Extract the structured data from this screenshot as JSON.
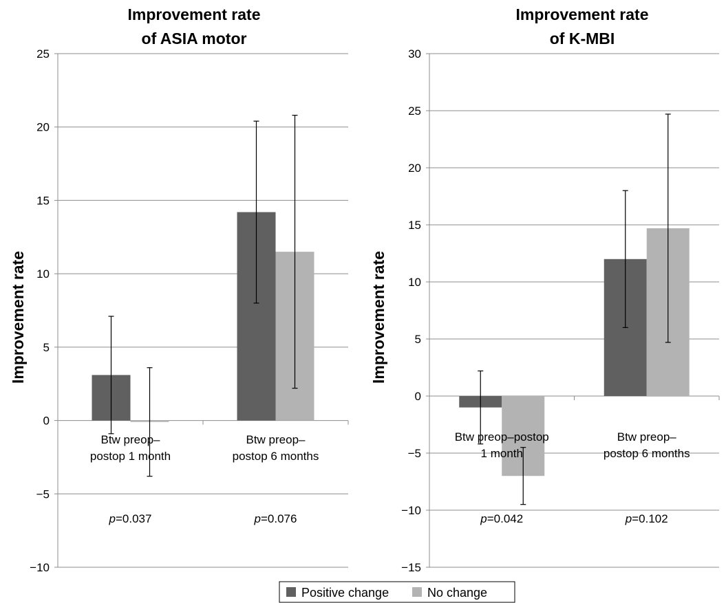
{
  "chart_data": [
    {
      "type": "bar",
      "title": "Improvement rate\nof ASIA motor",
      "ylabel": "Improvement rate",
      "ylim": [
        -10,
        25
      ],
      "yticks": [
        -10,
        -5,
        0,
        5,
        10,
        15,
        20,
        25
      ],
      "ytick_labels": [
        "−10",
        "−5",
        "0",
        "5",
        "10",
        "15",
        "20",
        "25"
      ],
      "categories": [
        "Btw preop–\npostop 1 month",
        "Btw preop–\npostop 6 months"
      ],
      "series": [
        {
          "name": "Positive change",
          "values": [
            3.1,
            14.2
          ],
          "err_low": [
            -0.9,
            8.0
          ],
          "err_high": [
            7.1,
            20.4
          ]
        },
        {
          "name": "No change",
          "values": [
            -0.1,
            11.5
          ],
          "err_low": [
            -3.8,
            2.2
          ],
          "err_high": [
            3.6,
            20.8
          ]
        }
      ],
      "annotations": [
        {
          "prefix": "p",
          "text": "=0.037"
        },
        {
          "prefix": "p",
          "text": "=0.076"
        }
      ],
      "grid": true
    },
    {
      "type": "bar",
      "title": "Improvement rate\nof K-MBI",
      "ylabel": "Improvement rate",
      "ylim": [
        -15,
        30
      ],
      "yticks": [
        -15,
        -10,
        -5,
        0,
        5,
        10,
        15,
        20,
        25,
        30
      ],
      "ytick_labels": [
        "−15",
        "−10",
        "−5",
        "0",
        "5",
        "10",
        "15",
        "20",
        "25",
        "30"
      ],
      "categories": [
        "Btw preop–postop\n1 month",
        "Btw preop–\npostop 6 months"
      ],
      "series": [
        {
          "name": "Positive change",
          "values": [
            -1.0,
            12.0
          ],
          "err_low": [
            -4.2,
            6.0
          ],
          "err_high": [
            2.2,
            18.0
          ]
        },
        {
          "name": "No change",
          "values": [
            -7.0,
            14.7
          ],
          "err_low": [
            -9.5,
            4.7
          ],
          "err_high": [
            -4.5,
            24.7
          ]
        }
      ],
      "annotations": [
        {
          "prefix": "p",
          "text": "=0.042"
        },
        {
          "prefix": "p",
          "text": "=0.102"
        }
      ],
      "grid": true
    }
  ],
  "legend": {
    "placement": "bottom-center",
    "items": [
      {
        "label": "Positive change",
        "color": "#606060"
      },
      {
        "label": "No change",
        "color": "#b3b3b3"
      }
    ]
  },
  "colors": {
    "positive": "#606060",
    "no_change": "#b3b3b3"
  }
}
